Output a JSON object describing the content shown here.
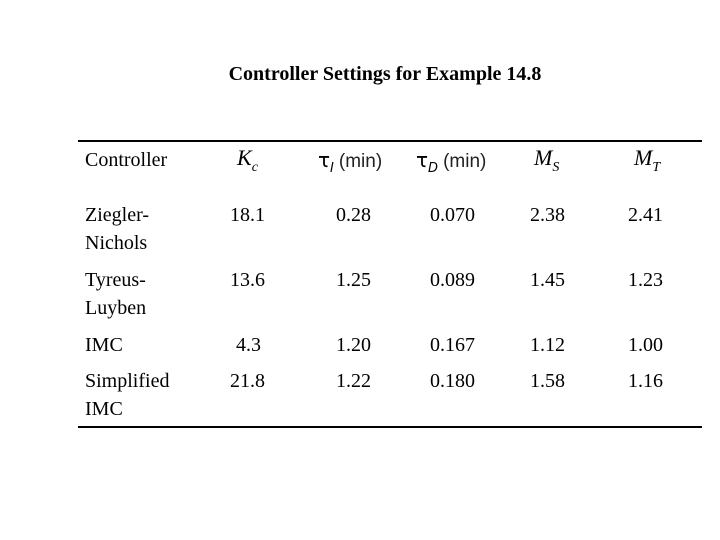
{
  "title": "Controller Settings for Example 14.8",
  "headers": {
    "controller": "Controller",
    "kc_main": "K",
    "kc_sub": "c",
    "taui_symbol": "τ",
    "taui_sub": "I",
    "taui_unit": "(min)",
    "taud_symbol": "τ",
    "taud_sub": "D",
    "taud_unit": "(min)",
    "ms_main": "M",
    "ms_sub": "S",
    "mt_main": "M",
    "mt_sub": "T"
  },
  "rows": [
    {
      "name": "Ziegler-Nichols",
      "kc": "18.1",
      "tau_i": "0.28",
      "tau_d": "0.070",
      "ms": "2.38",
      "mt": "2.41"
    },
    {
      "name": "Tyreus-Luyben",
      "kc": "13.6",
      "tau_i": "1.25",
      "tau_d": "0.089",
      "ms": "1.45",
      "mt": "1.23"
    },
    {
      "name": "IMC",
      "kc": "4.3",
      "tau_i": "1.20",
      "tau_d": "0.167",
      "ms": "1.12",
      "mt": "1.00"
    },
    {
      "name": "Simplified IMC",
      "kc": "21.8",
      "tau_i": "1.22",
      "tau_d": "0.180",
      "ms": "1.58",
      "mt": "1.16"
    }
  ]
}
